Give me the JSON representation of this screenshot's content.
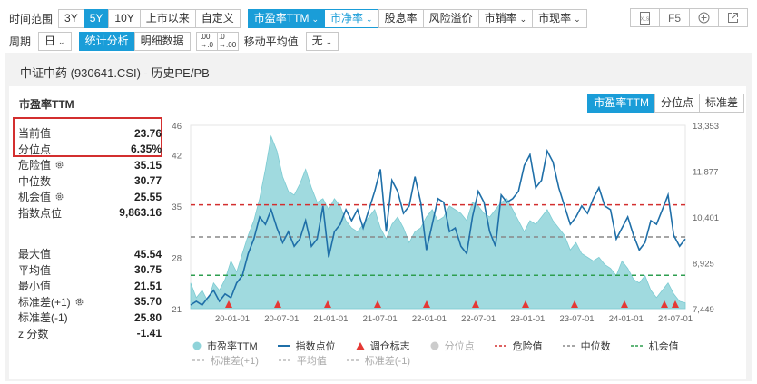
{
  "toolbar": {
    "range_label": "时间范围",
    "range_buttons": [
      "3Y",
      "5Y",
      "10Y",
      "上市以来",
      "自定义"
    ],
    "range_active": "5Y",
    "metric_buttons": [
      "市盈率TTM",
      "市净率",
      "股息率",
      "风险溢价",
      "市销率",
      "市现率"
    ],
    "period_label": "周期",
    "period_value": "日",
    "stat_analysis": "统计分析",
    "detail_data": "明细数据",
    "decimal_dec": ".00→.0",
    "decimal_inc": ".0→.00",
    "ma_label": "移动平均值",
    "ma_value": "无",
    "f5_label": "F5"
  },
  "page_title": "中证中药 (930641.CSI) - 历史PE/PB",
  "card": {
    "title": "市盈率TTM",
    "segments": [
      "市盈率TTM",
      "分位点",
      "标准差"
    ]
  },
  "stats": {
    "current_label": "当前值",
    "current_value": "23.76",
    "pct_label": "分位点",
    "pct_value": "6.35%",
    "danger_label": "危险值",
    "danger_value": "35.15",
    "median_label": "中位数",
    "median_value": "30.77",
    "chance_label": "机会值",
    "chance_value": "25.55",
    "index_label": "指数点位",
    "index_value": "9,863.16",
    "max_label": "最大值",
    "max_value": "45.54",
    "avg_label": "平均值",
    "avg_value": "30.75",
    "min_label": "最小值",
    "min_value": "21.51",
    "sdp_label": "标准差(+1)",
    "sdp_value": "35.70",
    "sdm_label": "标准差(-1)",
    "sdm_value": "25.80",
    "z_label": "z 分数",
    "z_value": "-1.41"
  },
  "legend": {
    "pe": "市盈率TTM",
    "index": "指数点位",
    "rebalance": "调仓标志",
    "percentile": "分位点",
    "danger": "危险值",
    "median": "中位数",
    "chance": "机会值",
    "sd_plus": "标准差(+1)",
    "avg": "平均值",
    "sd_minus": "标准差(-1)"
  },
  "colors": {
    "accent": "#1a9dd8",
    "area": "#8fd3d9",
    "index_line": "#1f6fa8",
    "danger": "#d32f2f",
    "median": "#888888",
    "chance": "#2e9e4f",
    "marker": "#e53935"
  },
  "chart_data": {
    "type": "area",
    "left_axis": {
      "ticks": [
        21,
        28,
        35,
        42,
        46
      ],
      "range": [
        21,
        46
      ]
    },
    "right_axis": {
      "ticks": [
        "7,449",
        "8,925",
        "10,401",
        "11,877",
        "13,353"
      ],
      "range": [
        7449,
        13353
      ]
    },
    "x_ticks": [
      "20-01-01",
      "20-07-01",
      "21-01-01",
      "21-07-01",
      "22-01-01",
      "22-07-01",
      "23-01-01",
      "23-07-01",
      "24-01-01",
      "24-07-01"
    ],
    "ref_lines": {
      "danger": 35.15,
      "median": 30.77,
      "chance": 25.55
    },
    "pe_series": [
      24.5,
      22.5,
      23.5,
      22.0,
      24.5,
      23.5,
      25.0,
      27.5,
      26.0,
      28.5,
      31.0,
      33.0,
      36.0,
      40.0,
      44.5,
      42.5,
      39.0,
      37.0,
      36.5,
      38.0,
      40.0,
      37.5,
      35.5,
      36.0,
      34.5,
      36.0,
      35.0,
      33.0,
      32.0,
      31.5,
      32.5,
      33.5,
      34.5,
      32.0,
      30.5,
      32.5,
      33.5,
      32.0,
      30.0,
      31.5,
      32.0,
      33.5,
      34.5,
      33.0,
      33.5,
      35.0,
      34.5,
      34.0,
      33.0,
      35.5,
      35.0,
      34.0,
      33.5,
      34.5,
      35.5,
      36.0,
      34.5,
      33.0,
      31.5,
      33.0,
      32.5,
      33.5,
      34.5,
      33.0,
      32.0,
      31.0,
      29.0,
      30.0,
      28.5,
      28.0,
      27.5,
      28.0,
      27.0,
      26.5,
      25.5,
      27.5,
      26.5,
      25.0,
      24.5,
      25.5,
      23.5,
      22.5,
      23.5,
      24.5,
      23.0,
      22.0,
      21.8
    ],
    "index_series": [
      21.5,
      22.0,
      21.5,
      22.5,
      23.5,
      22.0,
      23.0,
      22.5,
      24.5,
      25.5,
      28.5,
      30.5,
      33.5,
      32.5,
      34.5,
      32.0,
      30.0,
      31.5,
      29.5,
      30.5,
      33.0,
      29.5,
      30.5,
      35.0,
      28.0,
      31.5,
      32.5,
      34.5,
      33.0,
      34.5,
      32.0,
      34.5,
      37.0,
      40.0,
      31.5,
      38.5,
      37.0,
      34.0,
      35.0,
      39.0,
      35.5,
      29.0,
      32.5,
      36.0,
      35.5,
      31.5,
      32.0,
      29.5,
      28.5,
      33.5,
      37.0,
      35.5,
      31.5,
      29.5,
      36.5,
      35.5,
      36.0,
      37.0,
      40.5,
      42.0,
      37.5,
      38.5,
      42.5,
      41.0,
      37.5,
      35.0,
      32.5,
      33.5,
      35.0,
      34.0,
      36.0,
      37.5,
      35.0,
      34.5,
      30.5,
      32.0,
      33.5,
      31.0,
      29.0,
      30.0,
      33.0,
      32.5,
      34.5,
      36.5,
      31.0,
      29.5,
      30.5
    ],
    "rebalance_markers": [
      "20-01",
      "20-07",
      "21-01",
      "21-07",
      "22-01",
      "22-07",
      "23-01",
      "23-07",
      "24-01",
      "24-06",
      "24-07"
    ]
  }
}
